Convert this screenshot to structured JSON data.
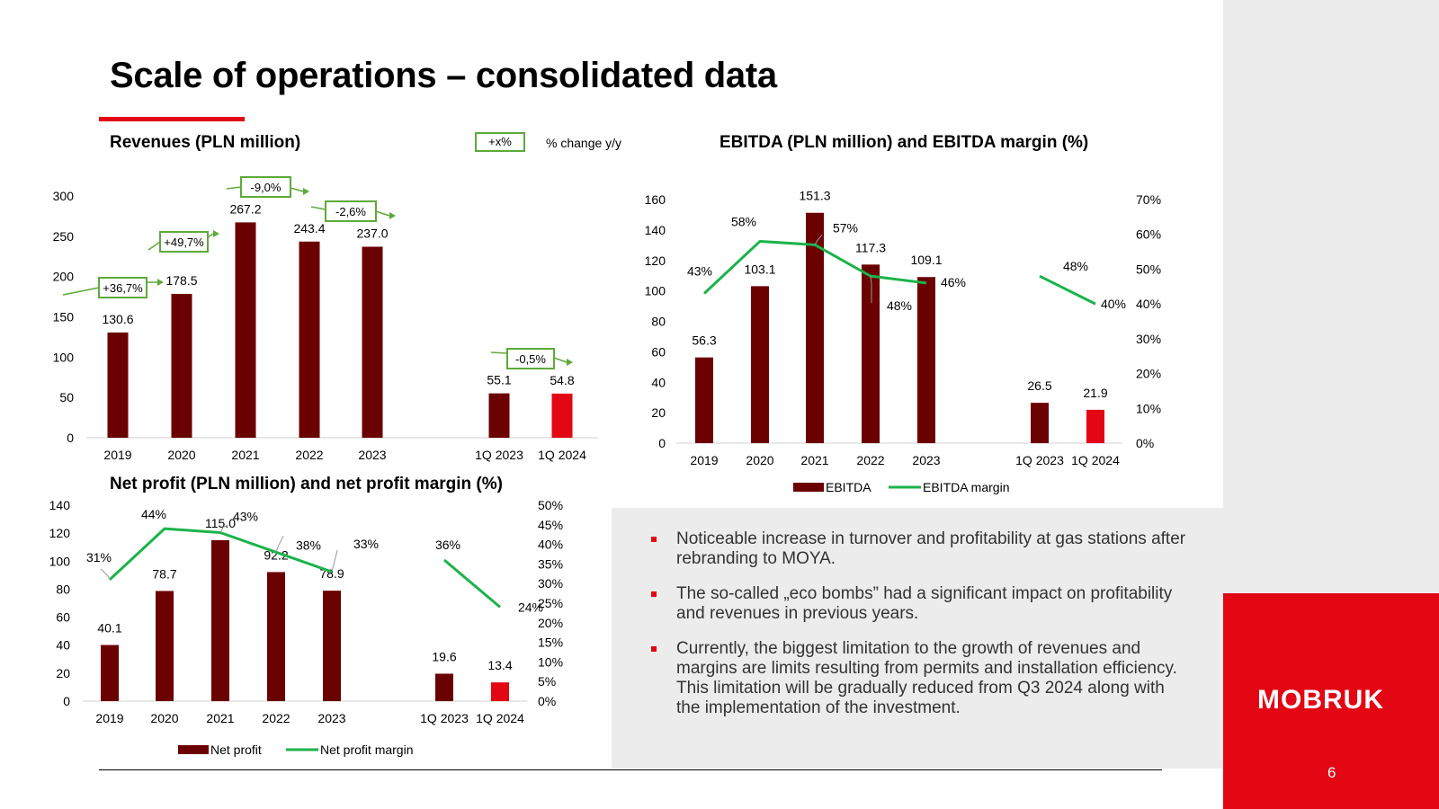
{
  "header": {
    "title": "Scale of operations – consolidated data"
  },
  "legend": {
    "change_box": "+x%",
    "change_label": "% change y/y"
  },
  "colors": {
    "bar": "#6b0000",
    "bar_highlight": "#e30613",
    "line": "#1bb34a",
    "change_border": "#5daa3a",
    "accent": "#e30613"
  },
  "brand": {
    "logo": "MOBRUK",
    "page_number": "6"
  },
  "bullets": [
    "Noticeable increase in turnover and profitability at gas stations after rebranding to MOYA.",
    "The so-called „eco bombs” had a significant impact on profitability and revenues in previous years.",
    "Currently, the biggest limitation to the growth of revenues and margins are limits resulting from permits and installation efficiency. This limitation will be gradually reduced from Q3 2024 along with the implementation of the investment."
  ],
  "chart_data": [
    {
      "id": "revenues",
      "type": "bar",
      "title": "Revenues (PLN million)",
      "categories": [
        "2019",
        "2020",
        "2021",
        "2022",
        "2023",
        "1Q 2023",
        "1Q 2024"
      ],
      "values": [
        130.6,
        178.5,
        267.2,
        243.4,
        237.0,
        55.1,
        54.8
      ],
      "value_labels": [
        "130.6",
        "178.5",
        "267.2",
        "243.4",
        "237.0",
        "55.1",
        "54.8"
      ],
      "highlight_index": 6,
      "ylim": [
        0,
        300
      ],
      "yticks": [
        "0",
        "50",
        "100",
        "150",
        "200",
        "250",
        "300"
      ],
      "changes": [
        "+36,7%",
        "+49,7%",
        "-9,0%",
        "-2,6%",
        "-0,5%"
      ]
    },
    {
      "id": "ebitda",
      "type": "bar+line",
      "title": "EBITDA (PLN million) and EBITDA margin (%)",
      "categories": [
        "2019",
        "2020",
        "2021",
        "2022",
        "2023",
        "1Q 2023",
        "1Q 2024"
      ],
      "values": [
        56.3,
        103.1,
        151.3,
        117.3,
        109.1,
        26.5,
        21.9
      ],
      "value_labels": [
        "56.3",
        "103.1",
        "151.3",
        "117.3",
        "109.1",
        "26.5",
        "21.9"
      ],
      "highlight_index": 6,
      "margin": [
        43,
        58,
        57,
        48,
        46,
        48,
        40
      ],
      "margin_labels": [
        "43%",
        "58%",
        "57%",
        "48%",
        "46%",
        "48%",
        "40%"
      ],
      "ylim": [
        0,
        160
      ],
      "yticks": [
        "0",
        "20",
        "40",
        "60",
        "80",
        "100",
        "120",
        "140",
        "160"
      ],
      "y2lim": [
        0,
        70
      ],
      "y2ticks": [
        "0%",
        "10%",
        "20%",
        "30%",
        "40%",
        "50%",
        "60%",
        "70%"
      ],
      "legend": [
        "EBITDA",
        "EBITDA margin"
      ]
    },
    {
      "id": "netprofit",
      "type": "bar+line",
      "title": "Net profit (PLN million) and net profit margin (%)",
      "categories": [
        "2019",
        "2020",
        "2021",
        "2022",
        "2023",
        "1Q 2023",
        "1Q 2024"
      ],
      "values": [
        40.1,
        78.7,
        115.0,
        92.2,
        78.9,
        19.6,
        13.4
      ],
      "value_labels": [
        "40.1",
        "78.7",
        "115.0",
        "92.2",
        "78.9",
        "19.6",
        "13.4"
      ],
      "highlight_index": 6,
      "margin": [
        31,
        44,
        43,
        38,
        33,
        36,
        24
      ],
      "margin_labels": [
        "31%",
        "44%",
        "43%",
        "38%",
        "33%",
        "36%",
        "24%"
      ],
      "ylim": [
        0,
        140
      ],
      "yticks": [
        "0",
        "20",
        "40",
        "60",
        "80",
        "100",
        "120",
        "140"
      ],
      "y2lim": [
        0,
        50
      ],
      "y2ticks": [
        "0%",
        "5%",
        "10%",
        "15%",
        "20%",
        "25%",
        "30%",
        "35%",
        "40%",
        "45%",
        "50%"
      ],
      "legend": [
        "Net profit",
        "Net profit margin"
      ]
    }
  ]
}
